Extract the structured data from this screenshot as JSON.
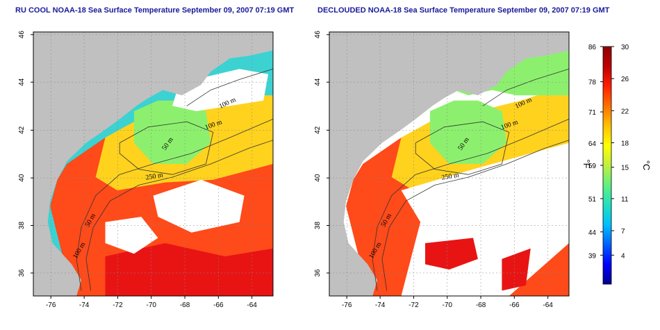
{
  "panels": [
    {
      "id": "raw",
      "title": "RU COOL NOAA-18 Sea Surface Temperature September 09, 2007 07:19 GMT",
      "x_ticks": [
        "-76",
        "-74",
        "-72",
        "-70",
        "-68",
        "-66",
        "-64"
      ],
      "y_ticks": [
        "46",
        "44",
        "42",
        "40",
        "38",
        "36"
      ],
      "isobath_labels": [
        "100 m",
        "100 m",
        "50 m",
        "250 m",
        "50 m",
        "100 m"
      ]
    },
    {
      "id": "declouded",
      "title": "DECLOUDED NOAA-18 Sea Surface Temperature September 09, 2007 07:19 GMT",
      "x_ticks": [
        "-76",
        "-74",
        "-72",
        "-70",
        "-68",
        "-66",
        "-64"
      ],
      "y_ticks": [
        "46",
        "44",
        "42",
        "40",
        "38",
        "36"
      ],
      "isobath_labels": [
        "100 m",
        "100 m",
        "50 m",
        "250 m",
        "50 m",
        "100 m"
      ]
    }
  ],
  "colorbar": {
    "unit_left": "°F",
    "unit_right": "°C",
    "f_ticks": [
      "86",
      "78",
      "71",
      "64",
      "59",
      "51",
      "44",
      "39"
    ],
    "c_ticks": [
      "30",
      "26",
      "22",
      "18",
      "15",
      "11",
      "7",
      "4"
    ],
    "colors": [
      "#00008f",
      "#0000ff",
      "#0060ff",
      "#00c0ff",
      "#20e0c0",
      "#60f080",
      "#c0f040",
      "#ffff00",
      "#ffc000",
      "#ff7000",
      "#ff2000",
      "#c00000",
      "#8f0000"
    ]
  },
  "map_colors": {
    "land": "#c0c0c0",
    "cloud": "#ffffff",
    "warm": "#ff4a1a",
    "hot": "#e81414",
    "mid": "#ffd21e",
    "cool": "#8cf06e",
    "cold": "#3cd2d2"
  }
}
